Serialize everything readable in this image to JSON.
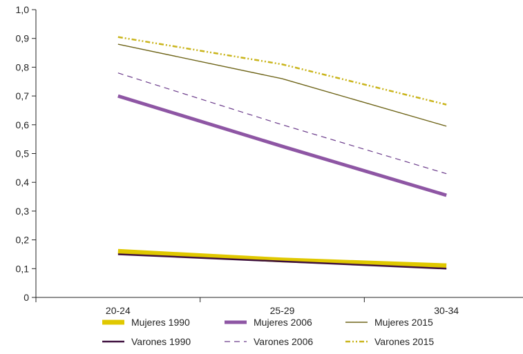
{
  "chart_data": {
    "type": "line",
    "title": "",
    "xlabel": "",
    "ylabel": "",
    "categories": [
      "20-24",
      "25-29",
      "30-34"
    ],
    "ylim": [
      0,
      1.0
    ],
    "yticks": [
      "0",
      "0,1",
      "0,2",
      "0,3",
      "0,4",
      "0,5",
      "0,6",
      "0,7",
      "0,8",
      "0,9",
      "1,0"
    ],
    "grid": false,
    "legend_position": "bottom",
    "series": [
      {
        "name": "Mujeres 1990",
        "values": [
          0.16,
          0.13,
          0.11
        ],
        "color": "#e0c800",
        "width": 7,
        "dash": ""
      },
      {
        "name": "Varones 1990",
        "values": [
          0.15,
          0.125,
          0.1
        ],
        "color": "#3d0f3d",
        "width": 2.5,
        "dash": ""
      },
      {
        "name": "Mujeres 2006",
        "values": [
          0.7,
          0.525,
          0.355
        ],
        "color": "#8e56a4",
        "width": 5,
        "dash": ""
      },
      {
        "name": "Varones 2006",
        "values": [
          0.78,
          0.6,
          0.43
        ],
        "color": "#6a3a8a",
        "width": 1.2,
        "dash": "8,6"
      },
      {
        "name": "Mujeres 2015",
        "values": [
          0.88,
          0.76,
          0.595
        ],
        "color": "#6e6418",
        "width": 1.4,
        "dash": ""
      },
      {
        "name": "Varones 2015",
        "values": [
          0.905,
          0.81,
          0.67
        ],
        "color": "#c9b41a",
        "width": 2.5,
        "dash": "7,3,2,3,2,3"
      }
    ]
  }
}
